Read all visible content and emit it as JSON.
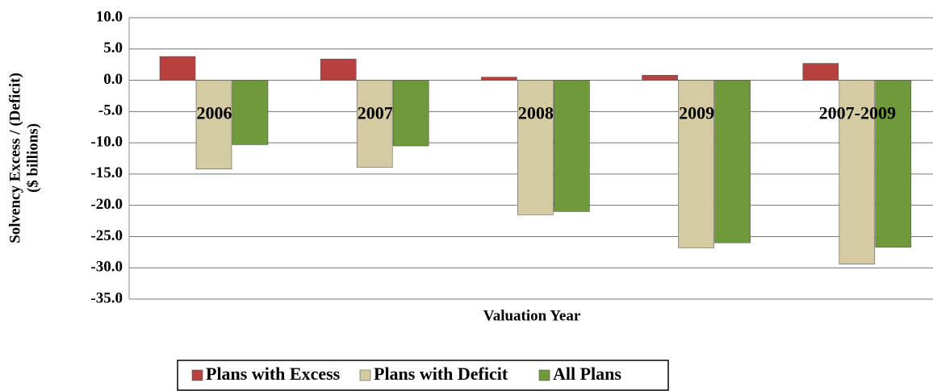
{
  "chart_data": {
    "type": "bar",
    "xlabel": "Valuation Year",
    "ylabel": [
      "Solvency Excess / (Deficit)",
      "($ billions)"
    ],
    "categories": [
      "2006",
      "2007",
      "2008",
      "2009",
      "2007-2009"
    ],
    "series": [
      {
        "name": "Plans with Excess",
        "color": "#b8413f",
        "values": [
          3.8,
          3.4,
          0.5,
          0.8,
          2.7
        ]
      },
      {
        "name": "Plans with Deficit",
        "color": "#d5cba2",
        "values": [
          -14.2,
          -13.9,
          -21.5,
          -26.8,
          -29.4
        ]
      },
      {
        "name": "All Plans",
        "color": "#6e9a3c",
        "values": [
          -10.3,
          -10.5,
          -21.0,
          -26.0,
          -26.7
        ]
      }
    ],
    "ylim": [
      -35,
      10
    ],
    "yticks": [
      {
        "value": 10,
        "label": "10.0"
      },
      {
        "value": 5,
        "label": "5.0"
      },
      {
        "value": 0,
        "label": "0.0"
      },
      {
        "value": -5,
        "label": "-5.0"
      },
      {
        "value": -10,
        "label": "-10.0"
      },
      {
        "value": -15,
        "label": "-15.0"
      },
      {
        "value": -20,
        "label": "-20.0"
      },
      {
        "value": -25,
        "label": "-25.0"
      },
      {
        "value": -30,
        "label": "-30.0"
      },
      {
        "value": -35,
        "label": "-35.0"
      }
    ],
    "grid": true,
    "legend": "bottom"
  }
}
